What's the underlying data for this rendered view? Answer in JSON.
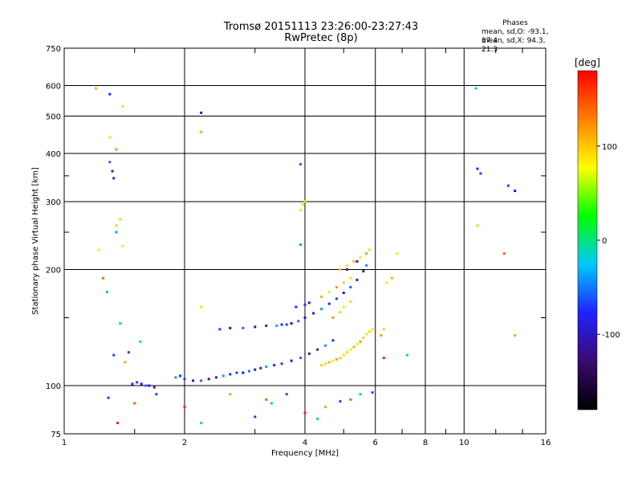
{
  "chart_data": {
    "type": "scatter",
    "title": "Tromsø 20151113 23:26:00-23:27:43",
    "subtitle": "RwPretec (8p)",
    "stats": {
      "heading": "Phases",
      "line1": "mean, sd,O:  -93.1, 17.4",
      "line2": "mean, sd,X:   94.3, 21.3"
    },
    "xlabel": "Frequency [MHz]",
    "ylabel": "Stationary phase Virtual Height [km]",
    "x_scale": "log",
    "y_scale": "log",
    "xlim": [
      1,
      16
    ],
    "ylim": [
      75,
      750
    ],
    "x_ticks": [
      1,
      2,
      4,
      6,
      8,
      10,
      16
    ],
    "x_minor_ticks": [
      1.5,
      3,
      5,
      7,
      9,
      12,
      14
    ],
    "y_ticks": [
      75,
      100,
      200,
      300,
      400,
      500,
      600,
      750
    ],
    "y_minor_ticks": [
      150,
      250,
      350
    ],
    "grid": true,
    "colorbar": {
      "label": "[deg]",
      "range": [
        -180,
        180
      ],
      "ticks": [
        100,
        0,
        -100
      ],
      "colors": [
        "#000000",
        "#3a0a6e",
        "#2020ff",
        "#00c8ff",
        "#00ff00",
        "#ffff00",
        "#ff8000",
        "#ff0000"
      ]
    },
    "series": [
      {
        "name": "O-mode traces",
        "x": [
          1.48,
          1.52,
          1.56,
          1.6,
          1.63,
          1.68,
          1.9,
          1.95,
          2.0,
          2.1,
          2.2,
          2.3,
          2.4,
          2.5,
          2.6,
          2.7,
          2.8,
          2.9,
          3.0,
          3.1,
          3.2,
          3.35,
          3.5,
          3.7,
          3.9,
          4.1,
          4.3,
          4.5,
          4.7,
          2.45,
          2.6,
          2.8,
          3.0,
          3.2,
          3.4,
          3.5,
          3.6,
          3.7,
          3.85,
          4.0,
          4.2,
          4.4,
          4.6,
          4.8,
          5.0,
          5.2,
          5.4,
          5.6,
          5.7,
          3.8,
          4.0,
          4.1,
          1.3,
          1.32,
          1.33,
          1.35,
          1.3,
          1.29,
          2.2,
          3.9,
          5.4,
          5.1,
          3.9,
          10.8,
          11.0,
          13.4
        ],
        "y": [
          101,
          102,
          101,
          100,
          100,
          99,
          105,
          106,
          104,
          103,
          103,
          104,
          105,
          106,
          107,
          108,
          108,
          109,
          110,
          111,
          112,
          113,
          114,
          116,
          118,
          121,
          124,
          127,
          131,
          140,
          141,
          141,
          142,
          143,
          143,
          144,
          144,
          145,
          147,
          150,
          154,
          158,
          163,
          168,
          174,
          180,
          188,
          198,
          205,
          160,
          162,
          164,
          380,
          360,
          345,
          250,
          570,
          93,
          510,
          375,
          210,
          200,
          232,
          365,
          355,
          320
        ]
      },
      {
        "name": "X-mode traces",
        "x": [
          4.4,
          4.5,
          4.6,
          4.7,
          4.8,
          4.9,
          5.0,
          5.1,
          5.2,
          5.3,
          5.4,
          5.5,
          5.6,
          5.7,
          5.8,
          5.9,
          4.4,
          4.6,
          4.8,
          5.0,
          5.2,
          4.9,
          5.1,
          5.3,
          5.5,
          5.7,
          5.8,
          3.9,
          3.95,
          4.0,
          2.2,
          1.3,
          1.35,
          1.35,
          1.4,
          1.38,
          1.4,
          1.2,
          1.22,
          4.7,
          4.9,
          5.0,
          5.2,
          6.4,
          6.6,
          6.8,
          6.2,
          6.3,
          2.2,
          10.8
        ],
        "y": [
          113,
          114,
          115,
          116,
          117,
          118,
          120,
          122,
          124,
          126,
          128,
          130,
          133,
          136,
          138,
          140,
          170,
          175,
          180,
          185,
          190,
          200,
          205,
          210,
          215,
          220,
          225,
          285,
          295,
          300,
          455,
          440,
          410,
          260,
          530,
          270,
          230,
          590,
          225,
          150,
          155,
          160,
          165,
          185,
          190,
          220,
          135,
          140,
          160,
          260
        ]
      },
      {
        "name": "Scattered echoes",
        "x": [
          1.25,
          1.28,
          1.33,
          1.36,
          1.38,
          1.42,
          1.45,
          1.5,
          1.55,
          1.7,
          2.0,
          2.2,
          2.6,
          3.0,
          3.2,
          3.3,
          3.6,
          4.0,
          4.3,
          4.5,
          4.9,
          5.2,
          5.5,
          5.9,
          6.3,
          7.2,
          13.4,
          12.9,
          12.6,
          10.7
        ],
        "y": [
          190,
          175,
          120,
          80,
          145,
          115,
          122,
          90,
          130,
          95,
          88,
          80,
          95,
          83,
          92,
          90,
          95,
          85,
          82,
          88,
          91,
          92,
          95,
          96,
          118,
          120,
          135,
          330,
          220,
          590
        ]
      }
    ]
  }
}
